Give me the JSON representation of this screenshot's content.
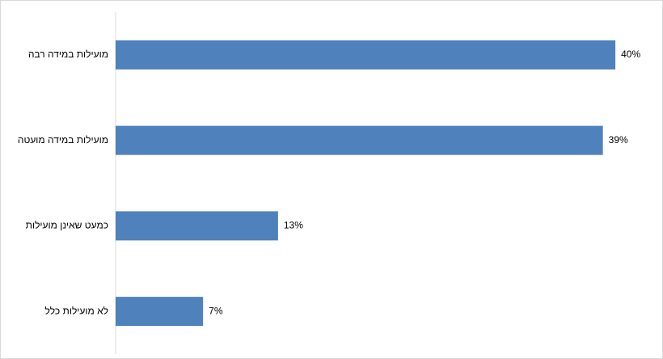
{
  "chart_data": {
    "type": "hbar",
    "categories": [
      "מועילות  במידה רבה",
      "מועילות  במידה מועטה",
      "כמעט  שאינן מועילות",
      "לא מועילות  כלל"
    ],
    "values": [
      40,
      39,
      13,
      7
    ],
    "value_labels": [
      "40%",
      "39%",
      "13%",
      "7%"
    ],
    "color": "#4f81bd",
    "xlim": [
      0,
      42
    ]
  }
}
